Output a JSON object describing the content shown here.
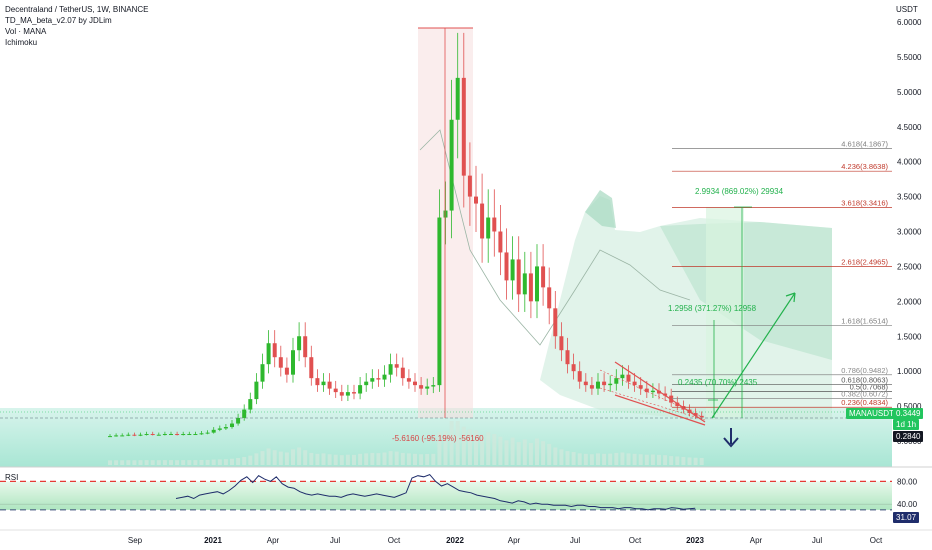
{
  "header": {
    "title": "Decentraland / TetherUS, 1W, BINANCE",
    "indicator_1": "TD_MA_beta_v2.07 by JDLim",
    "indicator_2": "Vol · MANA",
    "indicator_3": "Ichimoku"
  },
  "price_axis": {
    "currency": "USDT",
    "ticks": [
      "6.0000",
      "5.5000",
      "5.0000",
      "4.5000",
      "4.0000",
      "3.5000",
      "3.0000",
      "2.5000",
      "2.0000",
      "1.5000",
      "1.0000",
      "0.5000",
      "0.0000"
    ],
    "tick_values": [
      6,
      5.5,
      5,
      4.5,
      4,
      3.5,
      3,
      2.5,
      2,
      1.5,
      1,
      0.5,
      0
    ]
  },
  "badges": {
    "symbol_label": "MANAUSDT",
    "symbol_price": "0.3449",
    "countdown": "1d 1h",
    "current_price": "0.2840"
  },
  "fib_levels": [
    {
      "label": "4.618(4.1867)",
      "value": 4.1867,
      "color": "#7d7d7d"
    },
    {
      "label": "4.236(3.8638)",
      "value": 3.8638,
      "color": "#c0392b"
    },
    {
      "label": "3.618(3.3416)",
      "value": 3.3416,
      "color": "#c0392b"
    },
    {
      "label": "2.618(2.4965)",
      "value": 2.4965,
      "color": "#c0392b"
    },
    {
      "label": "1.618(1.6514)",
      "value": 1.6514,
      "color": "#7d7d7d"
    },
    {
      "label": "0.786(0.9482)",
      "value": 0.9482,
      "color": "#8a8a8a"
    },
    {
      "label": "0.618(0.8063)",
      "value": 0.8063,
      "color": "#555555"
    },
    {
      "label": "0.5(0.7068)",
      "value": 0.7068,
      "color": "#555555"
    },
    {
      "label": "0.382(0.6072)",
      "value": 0.6072,
      "color": "#8a8a8a"
    },
    {
      "label": "0.236(0.4834)",
      "value": 0.4834,
      "color": "#c0392b"
    }
  ],
  "annotations": {
    "drop": "-5.6160 (-95.19%) -56160",
    "target_1": "2.9934 (869.02%) 29934",
    "target_2": "1.2958 (371.27%) 12958",
    "target_3": "0.2435 (70.70%) 2435"
  },
  "rsi": {
    "label": "RSI",
    "ticks": [
      "80.00",
      "40.00"
    ],
    "tick_values": [
      80,
      40
    ],
    "current": "31.07",
    "values": [
      50,
      52,
      54,
      50,
      56,
      58,
      60,
      62,
      58,
      64,
      72,
      82,
      88,
      78,
      90,
      84,
      80,
      88,
      76,
      70,
      68,
      62,
      58,
      56,
      58,
      56,
      54,
      54,
      52,
      56,
      58,
      56,
      54,
      56,
      58,
      56,
      54,
      52,
      56,
      60,
      86,
      90,
      88,
      92,
      80,
      72,
      76,
      70,
      64,
      62,
      60,
      56,
      54,
      52,
      50,
      46,
      44,
      42,
      46,
      44,
      40,
      42,
      40,
      40,
      38,
      38,
      38,
      36,
      38,
      38,
      36,
      36,
      34,
      34,
      34,
      32,
      34,
      34,
      32,
      32,
      30,
      32,
      32,
      31,
      34,
      33,
      31,
      32,
      33
    ]
  },
  "time_axis": [
    "Sep",
    "2021",
    "Apr",
    "Jul",
    "Oct",
    "2022",
    "Apr",
    "Jul",
    "Oct",
    "2023",
    "Apr",
    "Jul",
    "Oct"
  ],
  "chart_data": {
    "type": "line",
    "title": "Decentraland / TetherUS, 1W, BINANCE",
    "ylabel": "USDT",
    "ylim": [
      0,
      6.0
    ],
    "series": [
      {
        "name": "MANAUSDT",
        "values": [
          0.07,
          0.08,
          0.08,
          0.09,
          0.08,
          0.09,
          0.1,
          0.09,
          0.09,
          0.1,
          0.1,
          0.09,
          0.1,
          0.1,
          0.1,
          0.11,
          0.12,
          0.16,
          0.18,
          0.2,
          0.25,
          0.33,
          0.45,
          0.6,
          0.85,
          1.1,
          1.4,
          1.2,
          1.05,
          0.95,
          1.3,
          1.5,
          1.2,
          0.9,
          0.8,
          0.85,
          0.75,
          0.7,
          0.65,
          0.7,
          0.68,
          0.8,
          0.85,
          0.9,
          0.88,
          0.95,
          1.1,
          1.05,
          0.9,
          0.85,
          0.8,
          0.75,
          0.78,
          0.8,
          3.2,
          3.3,
          4.6,
          5.2,
          3.8,
          3.5,
          3.4,
          2.9,
          3.2,
          3.0,
          2.7,
          2.3,
          2.6,
          2.1,
          2.4,
          2.0,
          2.5,
          2.2,
          1.9,
          1.5,
          1.3,
          1.1,
          1.0,
          0.85,
          0.8,
          0.75,
          0.85,
          0.8,
          0.82,
          0.9,
          0.95,
          0.85,
          0.8,
          0.75,
          0.7,
          0.72,
          0.68,
          0.65,
          0.55,
          0.5,
          0.45,
          0.4,
          0.36,
          0.34
        ]
      }
    ],
    "current_price": 0.284,
    "fib_extension_levels": [
      4.1867,
      3.8638,
      3.3416,
      2.4965,
      1.6514,
      0.9482,
      0.8063,
      0.7068,
      0.6072,
      0.4834
    ],
    "x_ticks": [
      "Sep",
      "2021",
      "Apr",
      "Jul",
      "Oct",
      "2022",
      "Apr",
      "Jul",
      "Oct",
      "2023",
      "Apr",
      "Jul",
      "Oct"
    ],
    "y_ticks": [
      6,
      5.5,
      5,
      4.5,
      4,
      3.5,
      3,
      2.5,
      2,
      1.5,
      1,
      0.5,
      0
    ]
  },
  "colors": {
    "up": "#26a69a",
    "down": "#ef5350",
    "bull_candle": "#2eb82e",
    "bear_candle": "#e05050",
    "fib_red": "#c0392b",
    "target": "#22c55e",
    "arrow_down": "#1f2d6b",
    "rsi_line": "#1f2d6b",
    "rsi_band": "#4caf50",
    "rsi_dash": "#e53935",
    "current_label_bg": "#131722",
    "symbol_bg": "#22c55e"
  }
}
